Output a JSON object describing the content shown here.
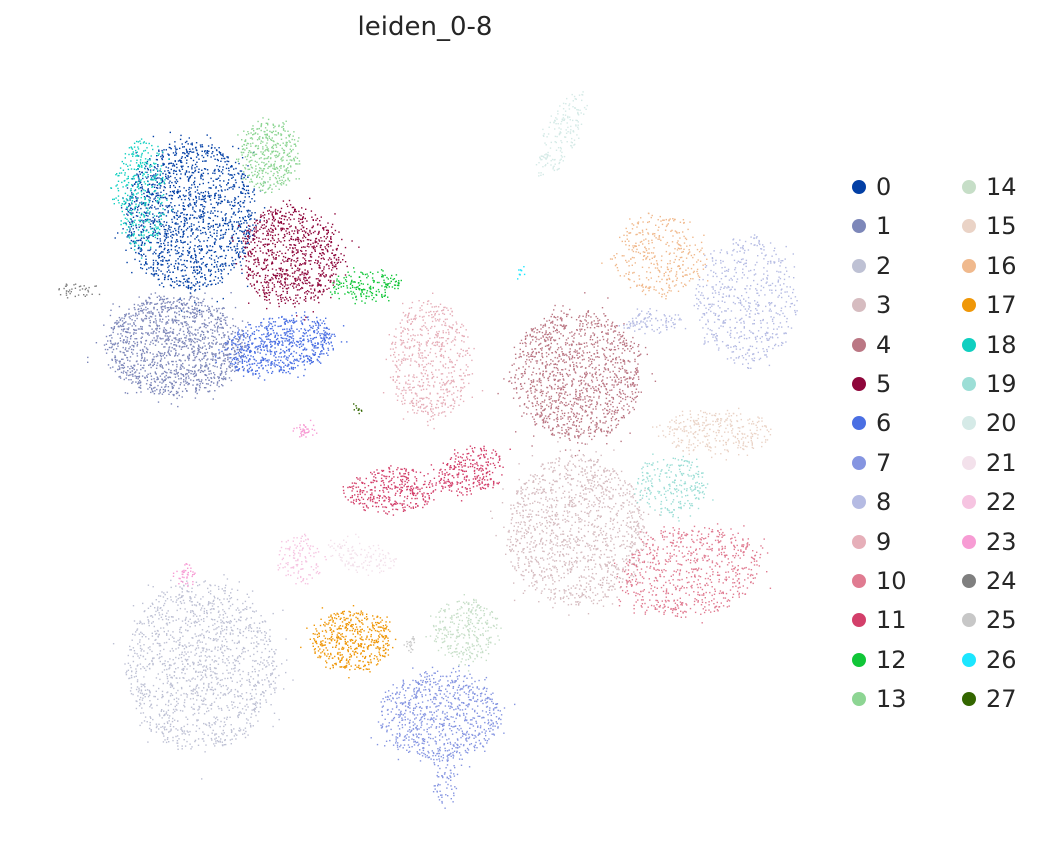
{
  "chart_data": {
    "type": "scatter",
    "title": "leiden_0-8",
    "xlabel": "",
    "ylabel": "",
    "grid": false,
    "axes_visible": false,
    "legend_placement": "right",
    "legend_columns": 2,
    "categories": [
      "0",
      "1",
      "2",
      "3",
      "4",
      "5",
      "6",
      "7",
      "8",
      "9",
      "10",
      "11",
      "12",
      "13",
      "14",
      "15",
      "16",
      "17",
      "18",
      "19",
      "20",
      "21",
      "22",
      "23",
      "24",
      "25",
      "26",
      "27"
    ],
    "colors": [
      "#023fa5",
      "#7d87b9",
      "#bec1d4",
      "#d6bcc0",
      "#bb7784",
      "#8e063b",
      "#4a6fe3",
      "#8595e1",
      "#b5bbe3",
      "#e6afb9",
      "#e07b91",
      "#d33f6a",
      "#11c638",
      "#8dd593",
      "#c6dec7",
      "#ead3c6",
      "#f0b98d",
      "#ef9708",
      "#0fcfc0",
      "#9cded6",
      "#d5eae7",
      "#f3e1eb",
      "#f6c4e1",
      "#f79cd4",
      "#7f7f7f",
      "#c7c7c7",
      "#1ce6ff",
      "#336600"
    ]
  }
}
